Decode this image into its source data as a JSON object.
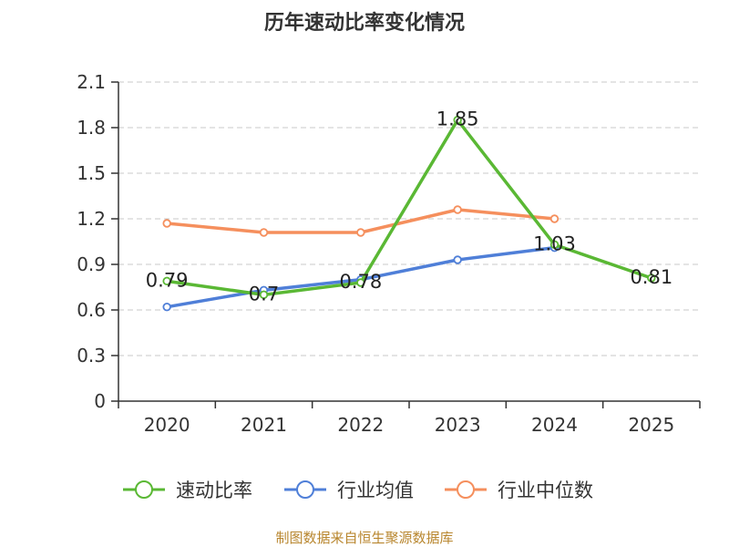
{
  "chart_data": {
    "type": "line",
    "title": "历年速动比率变化情况",
    "categories": [
      "2020",
      "2021",
      "2022",
      "2023",
      "2024",
      "2025"
    ],
    "ylim": [
      0,
      2.1
    ],
    "yticks": [
      "0",
      "0.3",
      "0.6",
      "0.9",
      "1.2",
      "1.5",
      "1.8",
      "2.1"
    ],
    "grid": true,
    "legend_position": "bottom",
    "series": [
      {
        "name": "速动比率",
        "color": "#5ab834",
        "values": [
          0.79,
          0.7,
          0.78,
          1.85,
          1.03,
          0.81
        ],
        "labels": [
          "0.79",
          "0.7",
          "0.78",
          "1.85",
          "1.03",
          "0.81"
        ]
      },
      {
        "name": "行业均值",
        "color": "#4f7fd8",
        "values": [
          0.62,
          0.73,
          0.8,
          0.93,
          1.01,
          null
        ]
      },
      {
        "name": "行业中位数",
        "color": "#f58f5d",
        "values": [
          1.17,
          1.11,
          1.11,
          1.26,
          1.2,
          null
        ]
      }
    ],
    "source": "制图数据来自恒生聚源数据库"
  }
}
